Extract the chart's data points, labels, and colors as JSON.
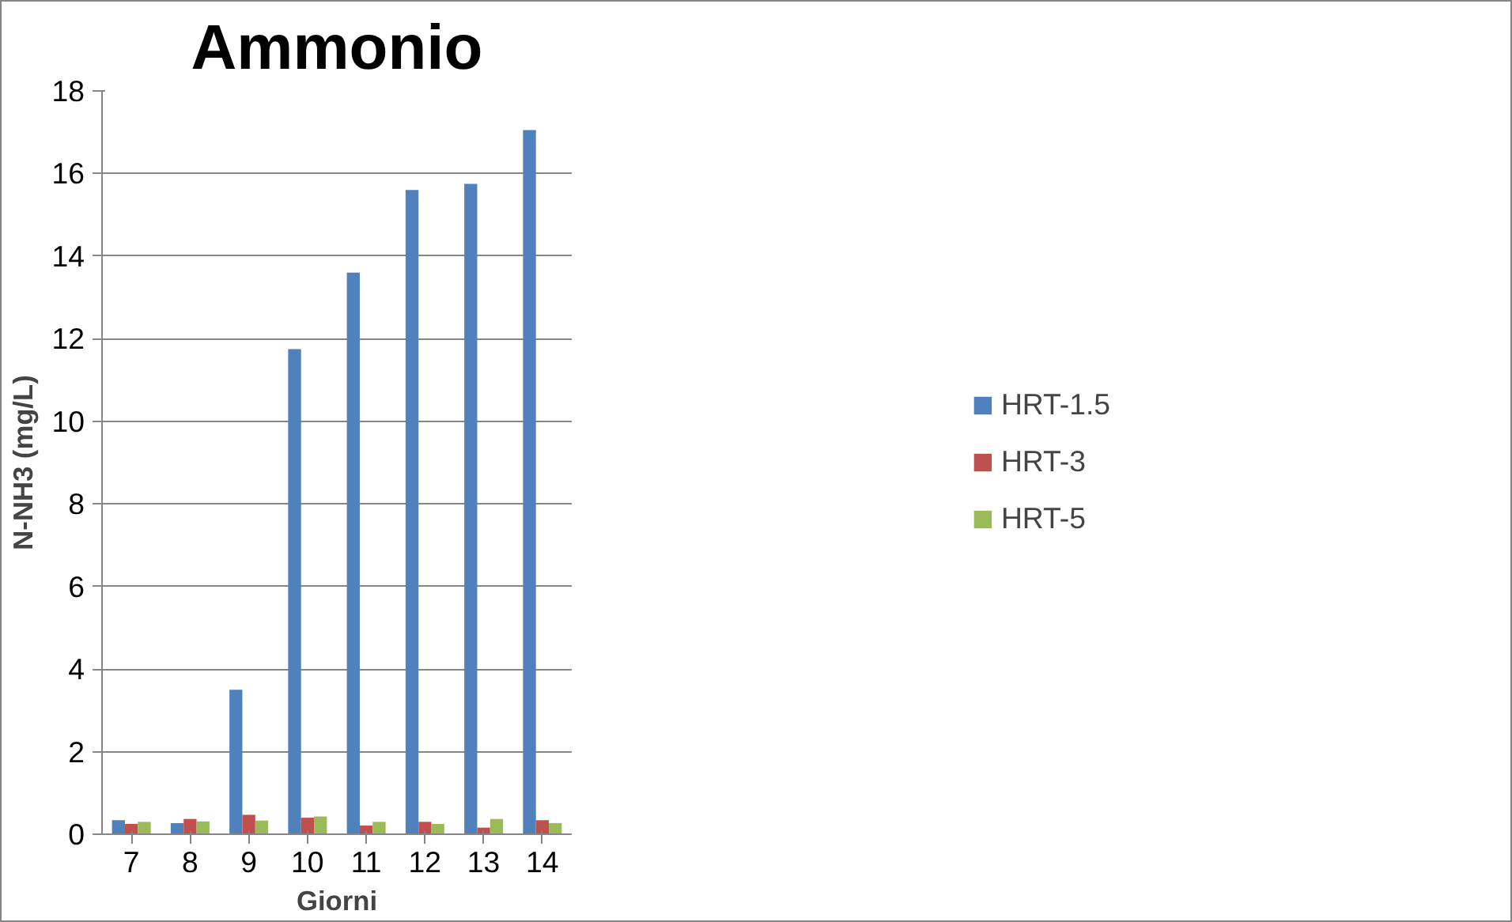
{
  "chart_data": {
    "type": "bar",
    "title": "Ammonio",
    "xlabel": "Giorni",
    "ylabel": "N-NH3 (mg/L)",
    "categories": [
      "7",
      "8",
      "9",
      "10",
      "11",
      "12",
      "13",
      "14"
    ],
    "series": [
      {
        "name": "HRT-1.5",
        "color": "#4f81bd",
        "values": [
          0.34,
          0.27,
          3.5,
          11.75,
          13.6,
          15.6,
          15.75,
          17.05
        ]
      },
      {
        "name": "HRT-3",
        "color": "#c0504d",
        "values": [
          0.25,
          0.37,
          0.47,
          0.4,
          0.21,
          0.3,
          0.16,
          0.34
        ]
      },
      {
        "name": "HRT-5",
        "color": "#9bbb59",
        "values": [
          0.3,
          0.31,
          0.33,
          0.43,
          0.3,
          0.25,
          0.37,
          0.27
        ]
      }
    ],
    "ylim": [
      0,
      18
    ],
    "yticks": [
      0,
      2,
      4,
      6,
      8,
      10,
      12,
      14,
      16,
      18
    ],
    "grid": "y",
    "legend": "right"
  }
}
